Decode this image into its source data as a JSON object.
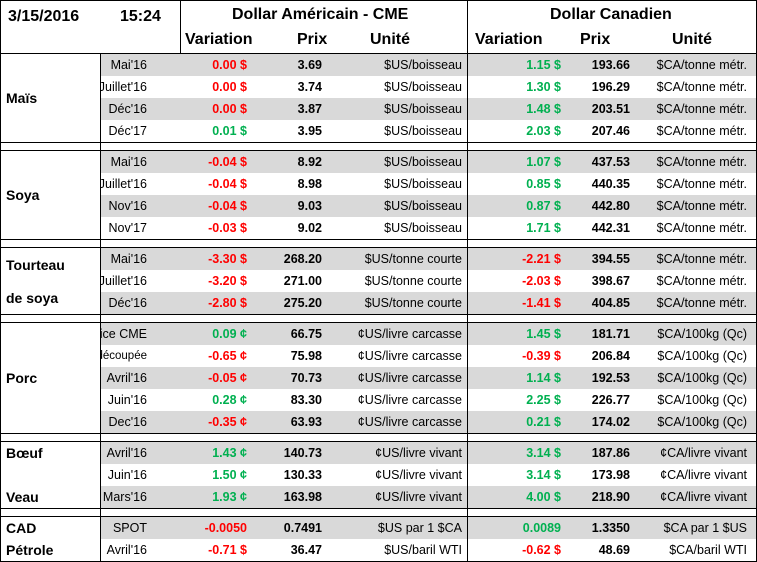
{
  "header": {
    "date": "3/15/2016",
    "time": "15:24",
    "usd_title": "Dollar Américain - CME",
    "cad_title": "Dollar Canadien",
    "col_variation": "Variation",
    "col_prix": "Prix",
    "col_unite": "Unité"
  },
  "groups": [
    {
      "label_lines": [
        "Maïs"
      ],
      "rows": [
        {
          "contract": "Mai'16",
          "usd_var": "0.00 $",
          "usd_var_color": "red",
          "usd_price": "3.69",
          "usd_unit": "$US/boisseau",
          "cad_var": "1.15 $",
          "cad_var_color": "green",
          "cad_price": "193.66",
          "cad_unit": "$CA/tonne métr."
        },
        {
          "contract": "Juillet'16",
          "usd_var": "0.00 $",
          "usd_var_color": "red",
          "usd_price": "3.74",
          "usd_unit": "$US/boisseau",
          "cad_var": "1.30 $",
          "cad_var_color": "green",
          "cad_price": "196.29",
          "cad_unit": "$CA/tonne métr."
        },
        {
          "contract": "Déc'16",
          "usd_var": "0.00 $",
          "usd_var_color": "red",
          "usd_price": "3.87",
          "usd_unit": "$US/boisseau",
          "cad_var": "1.48 $",
          "cad_var_color": "green",
          "cad_price": "203.51",
          "cad_unit": "$CA/tonne métr."
        },
        {
          "contract": "Déc'17",
          "usd_var": "0.01 $",
          "usd_var_color": "green",
          "usd_price": "3.95",
          "usd_unit": "$US/boisseau",
          "cad_var": "2.03 $",
          "cad_var_color": "green",
          "cad_price": "207.46",
          "cad_unit": "$CA/tonne métr."
        }
      ]
    },
    {
      "label_lines": [
        "Soya"
      ],
      "rows": [
        {
          "contract": "Mai'16",
          "usd_var": "-0.04 $",
          "usd_var_color": "red",
          "usd_price": "8.92",
          "usd_unit": "$US/boisseau",
          "cad_var": "1.07 $",
          "cad_var_color": "green",
          "cad_price": "437.53",
          "cad_unit": "$CA/tonne métr."
        },
        {
          "contract": "Juillet'16",
          "usd_var": "-0.04 $",
          "usd_var_color": "red",
          "usd_price": "8.98",
          "usd_unit": "$US/boisseau",
          "cad_var": "0.85 $",
          "cad_var_color": "green",
          "cad_price": "440.35",
          "cad_unit": "$CA/tonne métr."
        },
        {
          "contract": "Nov'16",
          "usd_var": "-0.04 $",
          "usd_var_color": "red",
          "usd_price": "9.03",
          "usd_unit": "$US/boisseau",
          "cad_var": "0.87 $",
          "cad_var_color": "green",
          "cad_price": "442.80",
          "cad_unit": "$CA/tonne métr."
        },
        {
          "contract": "Nov'17",
          "usd_var": "-0.03 $",
          "usd_var_color": "red",
          "usd_price": "9.02",
          "usd_unit": "$US/boisseau",
          "cad_var": "1.71 $",
          "cad_var_color": "green",
          "cad_price": "442.31",
          "cad_unit": "$CA/tonne métr."
        }
      ]
    },
    {
      "label_lines": [
        "Tourteau",
        "de soya"
      ],
      "rows": [
        {
          "contract": "Mai'16",
          "usd_var": "-3.30 $",
          "usd_var_color": "red",
          "usd_price": "268.20",
          "usd_unit": "$US/tonne courte",
          "cad_var": "-2.21 $",
          "cad_var_color": "red",
          "cad_price": "394.55",
          "cad_unit": "$CA/tonne métr."
        },
        {
          "contract": "Juillet'16",
          "usd_var": "-3.20 $",
          "usd_var_color": "red",
          "usd_price": "271.00",
          "usd_unit": "$US/tonne courte",
          "cad_var": "-2.03 $",
          "cad_var_color": "red",
          "cad_price": "398.67",
          "cad_unit": "$CA/tonne métr."
        },
        {
          "contract": "Déc'16",
          "usd_var": "-2.80 $",
          "usd_var_color": "red",
          "usd_price": "275.20",
          "usd_unit": "$US/tonne courte",
          "cad_var": "-1.41 $",
          "cad_var_color": "red",
          "cad_price": "404.85",
          "cad_unit": "$CA/tonne métr."
        }
      ]
    },
    {
      "label_lines": [
        "Porc"
      ],
      "rows": [
        {
          "contract": "Indice CME",
          "usd_var": "0.09 ¢",
          "usd_var_color": "green",
          "usd_price": "66.75",
          "usd_unit": "¢US/livre carcasse",
          "cad_var": "1.45 $",
          "cad_var_color": "green",
          "cad_price": "181.71",
          "cad_unit": "$CA/100kg (Qc)"
        },
        {
          "contract": "Carcasse découpée",
          "usd_var": "-0.65 ¢",
          "usd_var_color": "red",
          "usd_price": "75.98",
          "usd_unit": "¢US/livre carcasse",
          "cad_var": "-0.39 $",
          "cad_var_color": "red",
          "cad_price": "206.84",
          "cad_unit": "$CA/100kg (Qc)"
        },
        {
          "contract": "Avril'16",
          "usd_var": "-0.05 ¢",
          "usd_var_color": "red",
          "usd_price": "70.73",
          "usd_unit": "¢US/livre carcasse",
          "cad_var": "1.14 $",
          "cad_var_color": "green",
          "cad_price": "192.53",
          "cad_unit": "$CA/100kg (Qc)"
        },
        {
          "contract": "Juin'16",
          "usd_var": "0.28 ¢",
          "usd_var_color": "green",
          "usd_price": "83.30",
          "usd_unit": "¢US/livre carcasse",
          "cad_var": "2.25 $",
          "cad_var_color": "green",
          "cad_price": "226.77",
          "cad_unit": "$CA/100kg (Qc)"
        },
        {
          "contract": "Dec'16",
          "usd_var": "-0.35 ¢",
          "usd_var_color": "red",
          "usd_price": "63.93",
          "usd_unit": "¢US/livre carcasse",
          "cad_var": "0.21 $",
          "cad_var_color": "green",
          "cad_price": "174.02",
          "cad_unit": "$CA/100kg (Qc)"
        }
      ]
    },
    {
      "label_lines": [
        "Bœuf",
        "",
        "Veau"
      ],
      "rows": [
        {
          "contract": "Avril'16",
          "usd_var": "1.43 ¢",
          "usd_var_color": "green",
          "usd_price": "140.73",
          "usd_unit": "¢US/livre vivant",
          "cad_var": "3.14 $",
          "cad_var_color": "green",
          "cad_price": "187.86",
          "cad_unit": "¢CA/livre vivant"
        },
        {
          "contract": "Juin'16",
          "usd_var": "1.50 ¢",
          "usd_var_color": "green",
          "usd_price": "130.33",
          "usd_unit": "¢US/livre vivant",
          "cad_var": "3.14 $",
          "cad_var_color": "green",
          "cad_price": "173.98",
          "cad_unit": "¢CA/livre vivant"
        },
        {
          "contract": "Mars'16",
          "usd_var": "1.93 ¢",
          "usd_var_color": "green",
          "usd_price": "163.98",
          "usd_unit": "¢US/livre vivant",
          "cad_var": "4.00 $",
          "cad_var_color": "green",
          "cad_price": "218.90",
          "cad_unit": "¢CA/livre vivant"
        }
      ]
    },
    {
      "label_lines": [
        "CAD",
        "Pétrole"
      ],
      "rows": [
        {
          "contract": "SPOT",
          "usd_var": "-0.0050",
          "usd_var_color": "red",
          "usd_price": "0.7491",
          "usd_unit": "$US par 1 $CA",
          "cad_var": "0.0089",
          "cad_var_color": "green",
          "cad_price": "1.3350",
          "cad_unit": "$CA par 1 $US"
        },
        {
          "contract": "Avril'16",
          "usd_var": "-0.71 $",
          "usd_var_color": "red",
          "usd_price": "36.47",
          "usd_unit": "$US/baril WTI",
          "cad_var": "-0.62 $",
          "cad_var_color": "red",
          "cad_price": "48.69",
          "cad_unit": "$CA/baril WTI"
        }
      ]
    }
  ],
  "colors": {
    "red": "#ff0000",
    "green": "#00b050",
    "shade": "#d9d9d9"
  }
}
